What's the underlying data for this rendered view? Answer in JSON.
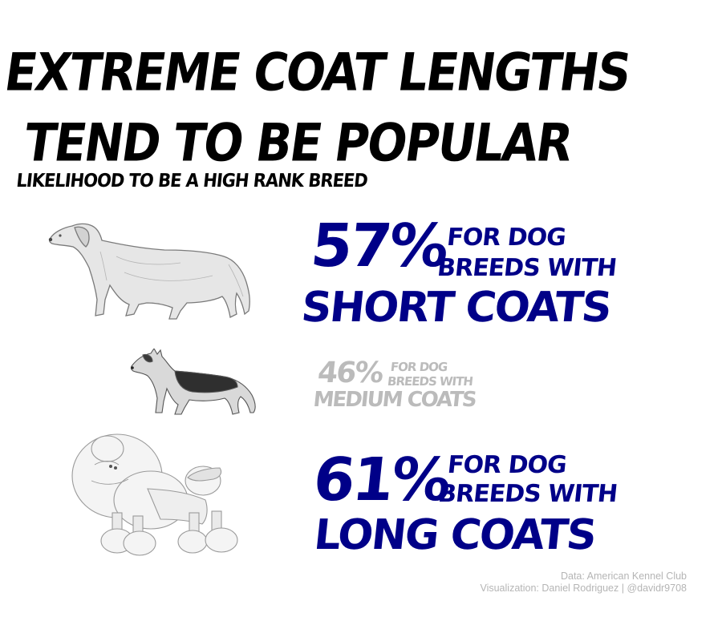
{
  "header": {
    "title_line1": "Extreme coat lengths",
    "title_line2": "tend to be popular",
    "subtitle": "Likelihood to be a high rank breed"
  },
  "stats": [
    {
      "pct": "57%",
      "desc_line1": "for dog",
      "desc_line2": "breeds with",
      "label": "short coats",
      "color": "#000088"
    },
    {
      "pct": "46%",
      "desc_line1": "for dog",
      "desc_line2": "breeds with",
      "label": "medium coats",
      "color": "#bbbbbb"
    },
    {
      "pct": "61%",
      "desc_line1": "for dog",
      "desc_line2": "breeds with",
      "label": "long coats",
      "color": "#000088"
    }
  ],
  "illustrations": [
    "short-coat-dog-icon",
    "medium-coat-dog-icon",
    "long-coat-dog-icon"
  ],
  "credits": {
    "data_source": "Data: American Kennel Club",
    "visualization": "Visualization: Daniel Rodriguez | @davidr9708"
  }
}
